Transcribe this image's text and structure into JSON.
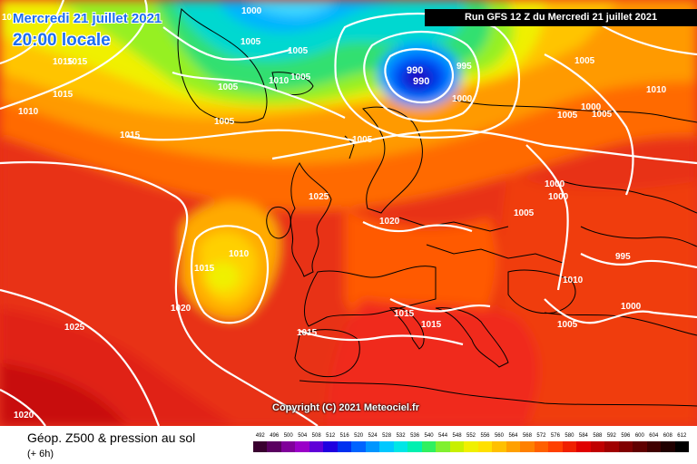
{
  "header": {
    "date_text": "Mercredi 21 juillet 2021",
    "time_text": "20:00 locale",
    "run_text": "Run GFS 12 Z du Mercredi 21 juillet 2021"
  },
  "copyright": "Copyright (C) 2021 Meteociel.fr",
  "footer": {
    "title": "Géop. Z500 & pression au sol",
    "subtitle": "(+ 6h)"
  },
  "scale": {
    "labels": [
      "492",
      "496",
      "500",
      "504",
      "508",
      "512",
      "516",
      "520",
      "524",
      "528",
      "532",
      "536",
      "540",
      "544",
      "548",
      "552",
      "556",
      "560",
      "564",
      "568",
      "572",
      "576",
      "580",
      "584",
      "588",
      "592",
      "596",
      "600",
      "604",
      "608",
      "612"
    ],
    "colors": [
      "#3a0030",
      "#5a0060",
      "#80009a",
      "#9a00c8",
      "#6000d8",
      "#2000e0",
      "#0030f0",
      "#0064ff",
      "#0096ff",
      "#00c8ff",
      "#00e6e6",
      "#00f0b0",
      "#30f060",
      "#80f030",
      "#c8f000",
      "#f0f000",
      "#ffe000",
      "#ffc000",
      "#ffa000",
      "#ff8000",
      "#ff6000",
      "#ff4000",
      "#f02000",
      "#e00000",
      "#c00000",
      "#a00000",
      "#800000",
      "#600000",
      "#400000",
      "#200000",
      "#000000"
    ]
  },
  "isobar_labels": [
    {
      "text": "1000"
    },
    {
      "text": "1005"
    },
    {
      "text": "1010"
    },
    {
      "text": "1015"
    },
    {
      "text": "1015"
    },
    {
      "text": "1010"
    },
    {
      "text": "1015"
    },
    {
      "text": "1005"
    },
    {
      "text": "1005"
    },
    {
      "text": "1005"
    },
    {
      "text": "1010"
    },
    {
      "text": "1005"
    },
    {
      "text": "1005"
    },
    {
      "text": "1010"
    },
    {
      "text": "995"
    },
    {
      "text": "1000"
    },
    {
      "text": "1005"
    },
    {
      "text": "1000"
    },
    {
      "text": "1005"
    },
    {
      "text": "1005"
    },
    {
      "text": "1000"
    },
    {
      "text": "1000"
    },
    {
      "text": "1005"
    },
    {
      "text": "1025"
    },
    {
      "text": "1020"
    },
    {
      "text": "1010"
    },
    {
      "text": "1015"
    },
    {
      "text": "1020"
    },
    {
      "text": "1025"
    },
    {
      "text": "995"
    },
    {
      "text": "1010"
    },
    {
      "text": "1000"
    },
    {
      "text": "1005"
    },
    {
      "text": "1015"
    },
    {
      "text": "1015"
    },
    {
      "text": "1015"
    },
    {
      "text": "1020"
    },
    {
      "text": "1015"
    }
  ],
  "low_labels": [
    {
      "text": "990"
    },
    {
      "text": "990"
    }
  ]
}
